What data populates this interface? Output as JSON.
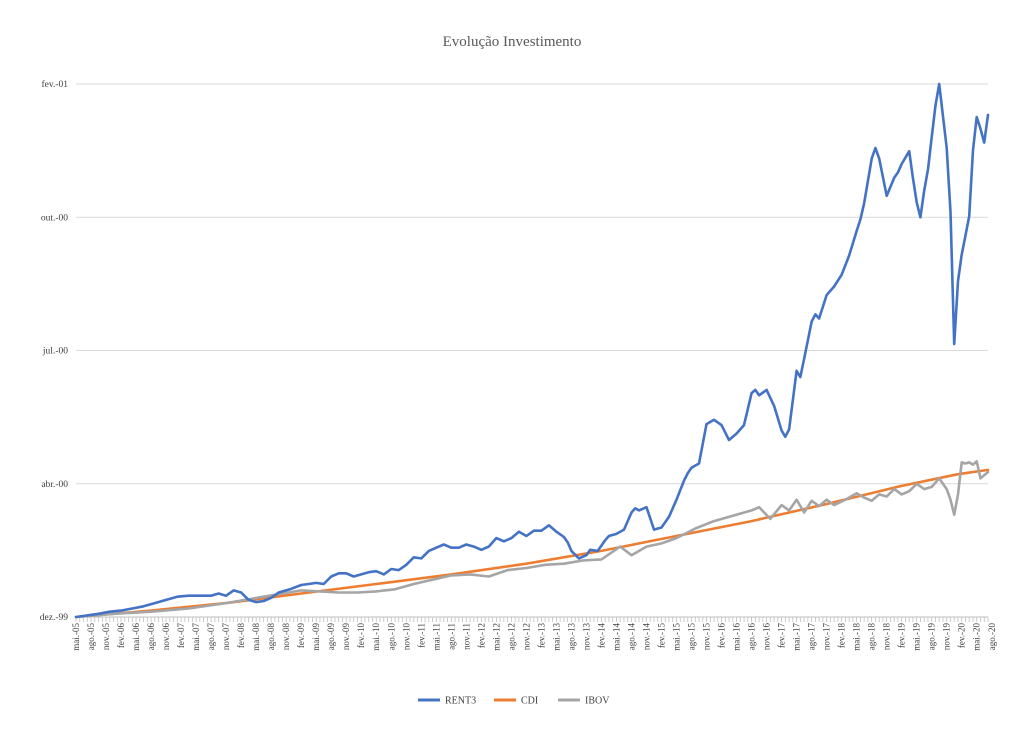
{
  "chart_data": {
    "type": "line",
    "title": "Evolução Investimento",
    "colors": {
      "RENT3": "#4472c4",
      "CDI": "#ed7d31",
      "IBOV": "#a5a5a5",
      "grid": "#d9d9d9"
    },
    "y_tick_labels": [
      "dez.-99",
      "abr.-00",
      "jul.-00",
      "out.-00",
      "fev.-01"
    ],
    "legend": {
      "placement": "bottom-center",
      "entries": [
        "RENT3",
        "CDI",
        "IBOV"
      ]
    },
    "grid": true,
    "x_start_label": "mai.-05",
    "x_tick_labels": [
      "mai.-05",
      "ago.-05",
      "nov.-05",
      "fev.-06",
      "mai.-06",
      "ago.-06",
      "nov.-06",
      "fev.-07",
      "mai.-07",
      "ago.-07",
      "nov.-07",
      "fev.-08",
      "mai.-08",
      "ago.-08",
      "nov.-08",
      "fev.-09",
      "mai.-09",
      "ago.-09",
      "nov.-09",
      "fev.-10",
      "mai.-10",
      "ago.-10",
      "nov.-10",
      "fev.-11",
      "mai.-11",
      "ago.-11",
      "nov.-11",
      "fev.-12",
      "mai.-12",
      "ago.-12",
      "nov.-12",
      "fev.-13",
      "mai.-13",
      "ago.-13",
      "nov.-13",
      "fev.-14",
      "mai.-14",
      "ago.-14",
      "nov.-14",
      "fev.-15",
      "mai.-15",
      "ago.-15",
      "nov.-15",
      "fev.-16",
      "mai.-16",
      "ago.-16",
      "nov.-16",
      "fev.-17",
      "mai.-17",
      "ago.-17",
      "nov.-17",
      "fev.-18",
      "mai.-18",
      "ago.-18",
      "nov.-18",
      "fev.-19",
      "mai.-19",
      "ago.-19",
      "nov.-19",
      "fev.-20",
      "mai.-20",
      "ago.-20"
    ],
    "y_unit_note": "",
    "series": [
      {
        "name": "RENT3",
        "points": [
          [
            0,
            0.0
          ],
          [
            6,
            0.3
          ],
          [
            9,
            0.5
          ],
          [
            12,
            0.6
          ],
          [
            15,
            0.8
          ],
          [
            18,
            1.0
          ],
          [
            21,
            1.3
          ],
          [
            24,
            1.6
          ],
          [
            27,
            1.9
          ],
          [
            30,
            2.0
          ],
          [
            33,
            2.0
          ],
          [
            36,
            2.0
          ],
          [
            38,
            2.2
          ],
          [
            40,
            2.0
          ],
          [
            42,
            2.5
          ],
          [
            44,
            2.3
          ],
          [
            46,
            1.6
          ],
          [
            48,
            1.4
          ],
          [
            50,
            1.5
          ],
          [
            52,
            1.8
          ],
          [
            54,
            2.3
          ],
          [
            57,
            2.6
          ],
          [
            60,
            3.0
          ],
          [
            62,
            3.1
          ],
          [
            64,
            3.2
          ],
          [
            66,
            3.1
          ],
          [
            68,
            3.8
          ],
          [
            70,
            4.1
          ],
          [
            72,
            4.1
          ],
          [
            74,
            3.8
          ],
          [
            76,
            4.0
          ],
          [
            78,
            4.2
          ],
          [
            80,
            4.3
          ],
          [
            82,
            4.0
          ],
          [
            84,
            4.5
          ],
          [
            86,
            4.4
          ],
          [
            88,
            4.9
          ],
          [
            90,
            5.6
          ],
          [
            92,
            5.5
          ],
          [
            94,
            6.2
          ],
          [
            96,
            6.5
          ],
          [
            98,
            6.8
          ],
          [
            100,
            6.5
          ],
          [
            102,
            6.5
          ],
          [
            104,
            6.8
          ],
          [
            106,
            6.6
          ],
          [
            108,
            6.3
          ],
          [
            110,
            6.6
          ],
          [
            112,
            7.4
          ],
          [
            114,
            7.1
          ],
          [
            116,
            7.4
          ],
          [
            118,
            8.0
          ],
          [
            120,
            7.6
          ],
          [
            122,
            8.1
          ],
          [
            124,
            8.1
          ],
          [
            126,
            8.6
          ],
          [
            128,
            8.0
          ],
          [
            130,
            7.5
          ],
          [
            131,
            7.0
          ],
          [
            132,
            6.2
          ],
          [
            134,
            5.5
          ],
          [
            136,
            5.8
          ],
          [
            137,
            6.3
          ],
          [
            139,
            6.2
          ],
          [
            141,
            7.2
          ],
          [
            142,
            7.6
          ],
          [
            144,
            7.8
          ],
          [
            146,
            8.2
          ],
          [
            148,
            9.8
          ],
          [
            149,
            10.2
          ],
          [
            150,
            10.0
          ],
          [
            152,
            10.3
          ],
          [
            154,
            8.2
          ],
          [
            156,
            8.4
          ],
          [
            158,
            9.4
          ],
          [
            160,
            11.0
          ],
          [
            162,
            12.8
          ],
          [
            163,
            13.5
          ],
          [
            164,
            14.0
          ],
          [
            166,
            14.4
          ],
          [
            168,
            18.1
          ],
          [
            170,
            18.5
          ],
          [
            172,
            18.0
          ],
          [
            174,
            16.6
          ],
          [
            176,
            17.2
          ],
          [
            178,
            18.0
          ],
          [
            180,
            21.0
          ],
          [
            181,
            21.3
          ],
          [
            182,
            20.8
          ],
          [
            184,
            21.3
          ],
          [
            186,
            19.8
          ],
          [
            188,
            17.5
          ],
          [
            189,
            16.9
          ],
          [
            190,
            17.6
          ],
          [
            192,
            23.1
          ],
          [
            193,
            22.5
          ],
          [
            194,
            24.2
          ],
          [
            196,
            27.7
          ],
          [
            197,
            28.4
          ],
          [
            198,
            28.0
          ],
          [
            200,
            30.2
          ],
          [
            202,
            31.0
          ],
          [
            204,
            32.1
          ],
          [
            206,
            33.9
          ],
          [
            208,
            36.2
          ],
          [
            209,
            37.3
          ],
          [
            210,
            38.8
          ],
          [
            212,
            43.0
          ],
          [
            213,
            44.0
          ],
          [
            214,
            43.0
          ],
          [
            216,
            39.5
          ],
          [
            218,
            41.2
          ],
          [
            219,
            41.7
          ],
          [
            220,
            42.5
          ],
          [
            222,
            43.7
          ],
          [
            223,
            41.2
          ],
          [
            224,
            38.9
          ],
          [
            225,
            37.5
          ],
          [
            226,
            40.0
          ],
          [
            227,
            42.0
          ],
          [
            228,
            45.0
          ],
          [
            229,
            48.0
          ],
          [
            230,
            50.0
          ],
          [
            232,
            44.0
          ],
          [
            233,
            38.0
          ],
          [
            234,
            25.6
          ],
          [
            235,
            31.5
          ],
          [
            236,
            34.0
          ],
          [
            237,
            35.8
          ],
          [
            238,
            37.6
          ],
          [
            239,
            43.8
          ],
          [
            240,
            46.9
          ],
          [
            241,
            45.8
          ],
          [
            242,
            44.5
          ],
          [
            243,
            47.1
          ]
        ]
      },
      {
        "name": "CDI",
        "points": [
          [
            0,
            0.0
          ],
          [
            20,
            0.6
          ],
          [
            40,
            1.3
          ],
          [
            60,
            2.2
          ],
          [
            80,
            3.1
          ],
          [
            100,
            4.0
          ],
          [
            120,
            5.0
          ],
          [
            140,
            6.2
          ],
          [
            160,
            7.6
          ],
          [
            180,
            9.0
          ],
          [
            200,
            10.6
          ],
          [
            220,
            12.3
          ],
          [
            235,
            13.4
          ],
          [
            243,
            13.8
          ]
        ]
      },
      {
        "name": "IBOV",
        "points": [
          [
            0,
            0.0
          ],
          [
            10,
            0.3
          ],
          [
            20,
            0.5
          ],
          [
            30,
            0.8
          ],
          [
            40,
            1.3
          ],
          [
            45,
            1.6
          ],
          [
            50,
            1.9
          ],
          [
            55,
            2.2
          ],
          [
            60,
            2.5
          ],
          [
            65,
            2.4
          ],
          [
            70,
            2.3
          ],
          [
            75,
            2.3
          ],
          [
            80,
            2.4
          ],
          [
            85,
            2.6
          ],
          [
            90,
            3.1
          ],
          [
            95,
            3.5
          ],
          [
            100,
            3.9
          ],
          [
            105,
            4.0
          ],
          [
            110,
            3.8
          ],
          [
            115,
            4.4
          ],
          [
            120,
            4.6
          ],
          [
            125,
            4.9
          ],
          [
            130,
            5.0
          ],
          [
            135,
            5.3
          ],
          [
            140,
            5.4
          ],
          [
            145,
            6.6
          ],
          [
            148,
            5.8
          ],
          [
            152,
            6.6
          ],
          [
            156,
            6.9
          ],
          [
            160,
            7.4
          ],
          [
            165,
            8.3
          ],
          [
            170,
            9.0
          ],
          [
            175,
            9.5
          ],
          [
            180,
            10.0
          ],
          [
            182,
            10.3
          ],
          [
            185,
            9.2
          ],
          [
            188,
            10.5
          ],
          [
            190,
            10.0
          ],
          [
            192,
            11.0
          ],
          [
            194,
            9.8
          ],
          [
            196,
            10.9
          ],
          [
            198,
            10.4
          ],
          [
            200,
            11.0
          ],
          [
            202,
            10.5
          ],
          [
            205,
            11.0
          ],
          [
            208,
            11.6
          ],
          [
            210,
            11.2
          ],
          [
            212,
            10.9
          ],
          [
            214,
            11.5
          ],
          [
            216,
            11.3
          ],
          [
            218,
            12.0
          ],
          [
            220,
            11.5
          ],
          [
            222,
            11.8
          ],
          [
            224,
            12.5
          ],
          [
            226,
            12.0
          ],
          [
            228,
            12.2
          ],
          [
            230,
            13.0
          ],
          [
            232,
            12.0
          ],
          [
            233,
            11.0
          ],
          [
            234,
            9.6
          ],
          [
            235,
            11.5
          ],
          [
            236,
            14.5
          ],
          [
            237,
            14.4
          ],
          [
            238,
            14.5
          ],
          [
            239,
            14.3
          ],
          [
            240,
            14.6
          ],
          [
            241,
            13.0
          ],
          [
            242,
            13.3
          ],
          [
            243,
            13.6
          ]
        ]
      }
    ],
    "x_range": [
      0,
      243
    ],
    "y_range": [
      0,
      50
    ]
  }
}
